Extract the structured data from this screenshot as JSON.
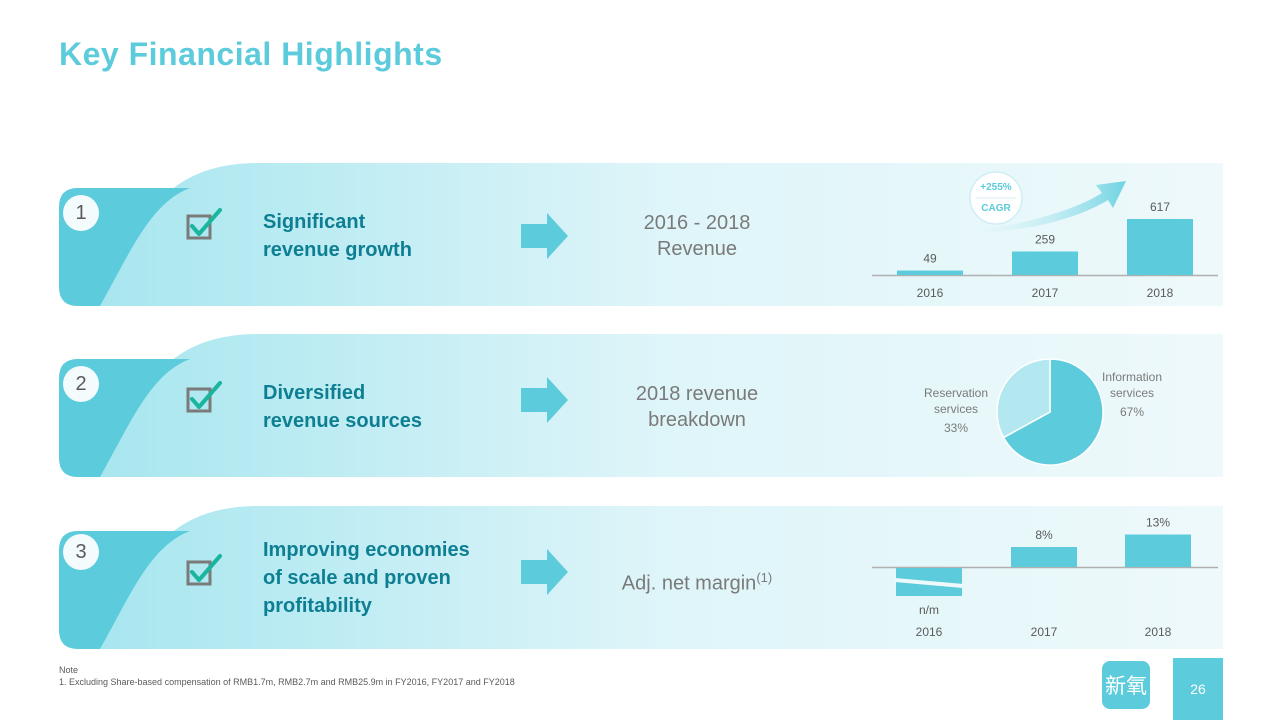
{
  "title": "Key Financial Highlights",
  "rows": [
    {
      "number": "1",
      "heading_lines": [
        "Significant",
        "revenue growth"
      ],
      "metric_lines": [
        "2016 - 2018",
        "Revenue"
      ],
      "cagr_value": "+255%",
      "cagr_label": "CAGR"
    },
    {
      "number": "2",
      "heading_lines": [
        "Diversified",
        "revenue sources"
      ],
      "metric_lines": [
        "2018 revenue",
        "breakdown"
      ]
    },
    {
      "number": "3",
      "heading_lines": [
        "Improving economies",
        "of scale and proven",
        "profitability"
      ],
      "metric_text": "Adj. net margin",
      "metric_sup": "(1)"
    }
  ],
  "chart_data": [
    {
      "type": "bar",
      "categories": [
        "2016",
        "2017",
        "2018"
      ],
      "values": [
        49,
        259,
        617
      ],
      "data_labels": [
        "49",
        "259",
        "617"
      ],
      "annotations": [
        "+255%",
        "CAGR"
      ]
    },
    {
      "type": "pie",
      "slices": [
        {
          "label_lines": [
            "Information",
            "services"
          ],
          "value": 67,
          "value_label": "67%"
        },
        {
          "label_lines": [
            "Reservation",
            "services"
          ],
          "value": 33,
          "value_label": "33%"
        }
      ]
    },
    {
      "type": "bar",
      "categories": [
        "2016",
        "2017",
        "2018"
      ],
      "values": [
        null,
        8,
        13
      ],
      "data_labels": [
        "n/m",
        "8%",
        "13%"
      ]
    }
  ],
  "note": {
    "label": "Note",
    "text": "1. Excluding Share-based compensation of RMB1.7m, RMB2.7m and RMB25.9m in FY2016, FY2017 and FY2018"
  },
  "logo_text": "新氧",
  "page_number": "26",
  "colors": {
    "accent": "#5ccbdc",
    "heading": "#0e7f92",
    "check": "#1bb59e",
    "box": "#7a7a7a"
  }
}
